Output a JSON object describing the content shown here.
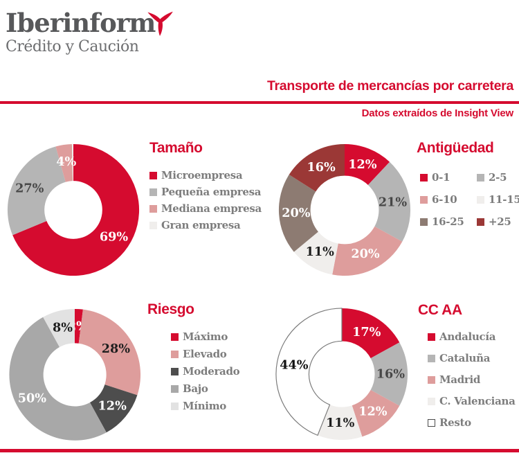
{
  "brand": {
    "logo_text": "Iberinform",
    "logo_subtext": "Crédito y Caución",
    "mark_icon": "three-point-star-icon",
    "accent_red": "#d50b2f",
    "logo_gray": "#57585a"
  },
  "header": {
    "title": "Transporte de mercancías por carretera",
    "subtitle": "Datos extraídos de Insight View"
  },
  "chart_data": [
    {
      "type": "pie",
      "donut": true,
      "title": "Tamaño",
      "unit": "%",
      "legend_position": "right",
      "legend_columns": 1,
      "labels": [
        "Microempresa",
        "Pequeña empresa",
        "Mediana empresa",
        "Gran empresa"
      ],
      "values": [
        69,
        27,
        4,
        0
      ],
      "colors": [
        "#d50b2f",
        "#b5b5b5",
        "#de9d9c",
        "#f0eeec"
      ],
      "label_colors": [
        "#ffffff",
        "#474747",
        "#ffffff",
        "#1e1e1e"
      ]
    },
    {
      "type": "pie",
      "donut": true,
      "title": "Antigüedad",
      "unit": "%",
      "legend_position": "right",
      "legend_columns": 2,
      "labels": [
        "0-1",
        "2-5",
        "6-10",
        "11-15",
        "16-25",
        "+25"
      ],
      "values": [
        12,
        21,
        20,
        11,
        20,
        16
      ],
      "colors": [
        "#d50b2f",
        "#b5b5b5",
        "#de9d9c",
        "#f0eeec",
        "#8d7b72",
        "#9b3836"
      ],
      "label_colors": [
        "#ffffff",
        "#474747",
        "#ffffff",
        "#1e1e1e",
        "#ffffff",
        "#ffffff"
      ]
    },
    {
      "type": "pie",
      "donut": true,
      "title": "Riesgo",
      "unit": "%",
      "legend_position": "right",
      "legend_columns": 1,
      "labels": [
        "Máximo",
        "Elevado",
        "Moderado",
        "Bajo",
        "Mínimo"
      ],
      "values": [
        2,
        28,
        12,
        50,
        8
      ],
      "colors": [
        "#d50b2f",
        "#de9d9c",
        "#4d4d4d",
        "#a8a8a8",
        "#e2e2e2"
      ],
      "label_colors": [
        "#ffffff",
        "#1e1e1e",
        "#ffffff",
        "#ffffff",
        "#1e1e1e"
      ]
    },
    {
      "type": "pie",
      "donut": true,
      "title": "CC AA",
      "unit": "%",
      "legend_position": "right",
      "legend_columns": 1,
      "labels": [
        "Andalucía",
        "Cataluña",
        "Madrid",
        "C. Valenciana",
        "Resto"
      ],
      "values": [
        17,
        16,
        12,
        11,
        44
      ],
      "colors": [
        "#d50b2f",
        "#b5b5b5",
        "#de9d9c",
        "#f0eeec",
        "#ffffff"
      ],
      "label_colors": [
        "#ffffff",
        "#474747",
        "#ffffff",
        "#1e1e1e",
        "#111111"
      ],
      "segment_strokes": [
        null,
        null,
        null,
        null,
        "#7a7a7a"
      ]
    }
  ]
}
